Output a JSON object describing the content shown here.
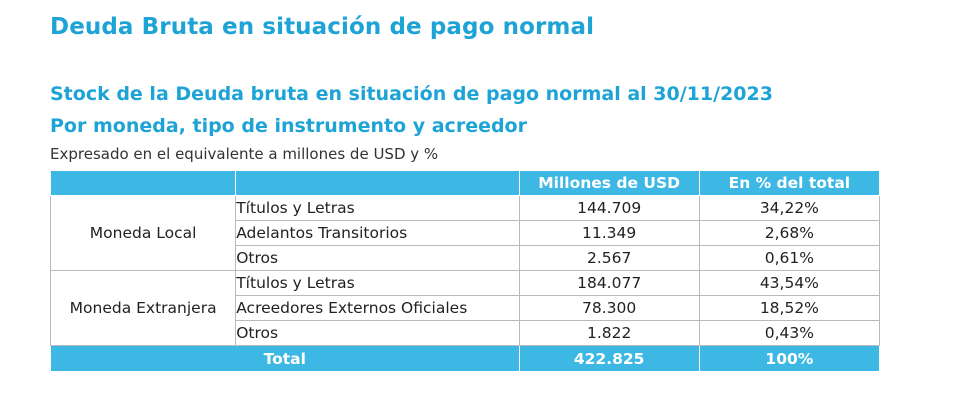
{
  "header": {
    "title": "Deuda Bruta en situación de pago normal",
    "subtitle_line1": "Stock de la Deuda bruta en situación de pago normal al 30/11/2023",
    "subtitle_line2": "Por moneda, tipo de instrumento y acreedor",
    "note": "Expresado en el equivalente a millones de USD y %"
  },
  "table": {
    "columns": [
      "",
      "",
      "Millones de USD",
      "En % del total"
    ],
    "groups": [
      {
        "label": "Moneda Local",
        "rows": [
          {
            "item": "Títulos y Letras",
            "musd": "144.709",
            "pct": "34,22%"
          },
          {
            "item": "Adelantos Transitorios",
            "musd": "11.349",
            "pct": "2,68%"
          },
          {
            "item": "Otros",
            "musd": "2.567",
            "pct": "0,61%"
          }
        ]
      },
      {
        "label": "Moneda Extranjera",
        "rows": [
          {
            "item": "Títulos y Letras",
            "musd": "184.077",
            "pct": "43,54%"
          },
          {
            "item": "Acreedores Externos Oficiales",
            "musd": "78.300",
            "pct": "18,52%"
          },
          {
            "item": "Otros",
            "musd": "1.822",
            "pct": "0,43%"
          }
        ]
      }
    ],
    "total": {
      "label": "Total",
      "musd": "422.825",
      "pct": "100%"
    }
  },
  "colors": {
    "accent": "#1ea3d6",
    "header_fill": "#3db8e5"
  }
}
